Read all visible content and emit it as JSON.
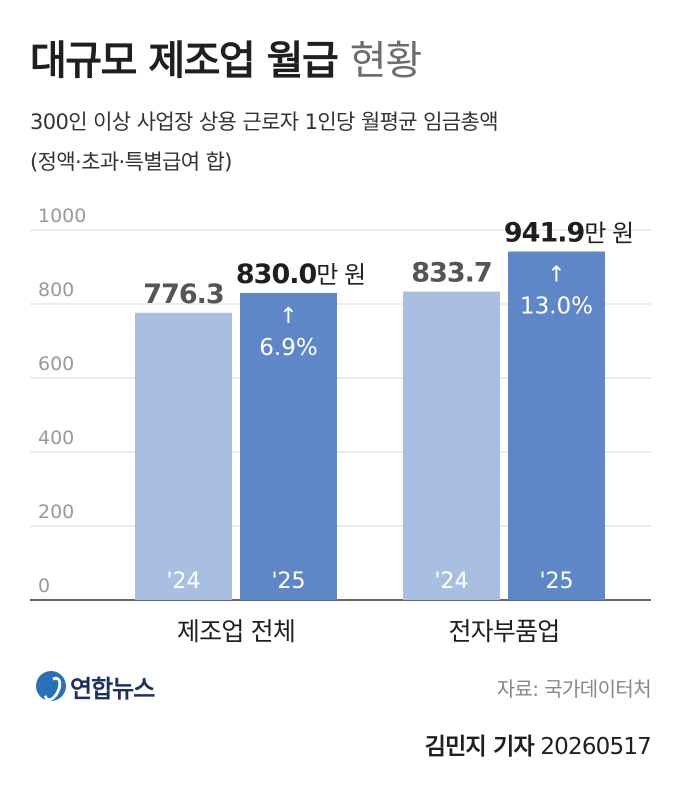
{
  "header": {
    "title_bold": "대규모 제조업 월급",
    "title_light": "현황",
    "subtitle_line1": "300인 이상 사업장 상용 근로자 1인당 월평균 임금총액",
    "subtitle_line2": "(정액·초과·특별급여 합)"
  },
  "chart_data": {
    "type": "bar",
    "ylim": [
      0,
      1000
    ],
    "y_ticks": [
      "0",
      "200",
      "400",
      "600",
      "800",
      "1000"
    ],
    "y_tick_values": [
      0,
      200,
      400,
      600,
      800,
      1000
    ],
    "grid": true,
    "groups": [
      {
        "category": "제조업 전체",
        "bars": [
          {
            "year": "'24",
            "value": 776.3,
            "label": "776.3",
            "unit": "",
            "color": "#a9bfe1",
            "change": ""
          },
          {
            "year": "'25",
            "value": 830.0,
            "label": "830.0",
            "unit": "만 원",
            "color": "#5f87c8",
            "change": "6.9%"
          }
        ]
      },
      {
        "category": "전자부품업",
        "bars": [
          {
            "year": "'24",
            "value": 833.7,
            "label": "833.7",
            "unit": "",
            "color": "#a9bfe1",
            "change": ""
          },
          {
            "year": "'25",
            "value": 941.9,
            "label": "941.9",
            "unit": "만 원",
            "color": "#5f87c8",
            "change": "13.0%"
          }
        ]
      }
    ],
    "arrow_symbol": "↑"
  },
  "footer": {
    "logo_text": "연합뉴스",
    "source": "자료: 국가데이터처",
    "reporter": "김민지 기자",
    "date": "20260517"
  },
  "colors": {
    "bar_2024": "#a9bfe1",
    "bar_2025": "#5f87c8",
    "gridline": "#d9d9d9",
    "axis_text": "#9a9a9a"
  }
}
